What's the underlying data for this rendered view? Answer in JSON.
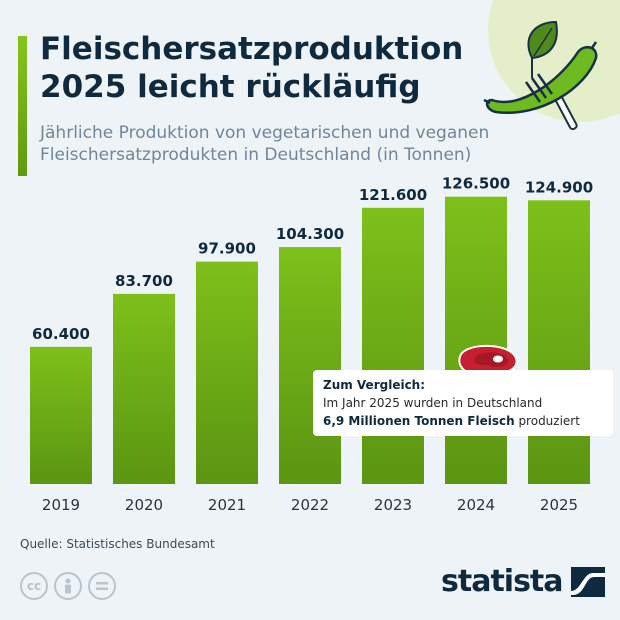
{
  "header": {
    "title": "Fleischersatzproduktion 2025 leicht rückläufig",
    "subtitle": "Jährliche Produktion von vegetarischen und veganen Fleischersatzprodukten in Deutschland (in Tonnen)"
  },
  "chart_data": {
    "type": "bar",
    "categories": [
      "2019",
      "2020",
      "2021",
      "2022",
      "2023",
      "2024",
      "2025"
    ],
    "values": [
      60400,
      83700,
      97900,
      104300,
      121600,
      126500,
      124900
    ],
    "value_labels": [
      "60.400",
      "83.700",
      "97.900",
      "104.300",
      "121.600",
      "126.500",
      "124.900"
    ],
    "ylim": [
      0,
      140000
    ],
    "grid": false,
    "bar_color": "#72b31a"
  },
  "callout": {
    "heading": "Zum Vergleich:",
    "line1": "Im Jahr 2025 wurden in Deutschland",
    "line2_bold": "6,9 Millionen Tonnen Fleisch",
    "line2_rest": " produziert"
  },
  "footer": {
    "source": "Quelle: Statistisches Bundesamt",
    "brand": "statista"
  },
  "icons": {
    "decoration": "sausage-fork-leaf-icon",
    "callout": "steak-icon",
    "license": [
      "cc-icon",
      "person-icon",
      "equals-icon"
    ],
    "brand": "statista-logo-icon"
  },
  "colors": {
    "title": "#0f2a3e",
    "subtitle": "#70869b",
    "background": "#eef3f7",
    "accent_green": "#72b31a",
    "meat_red": "#c4202f"
  }
}
